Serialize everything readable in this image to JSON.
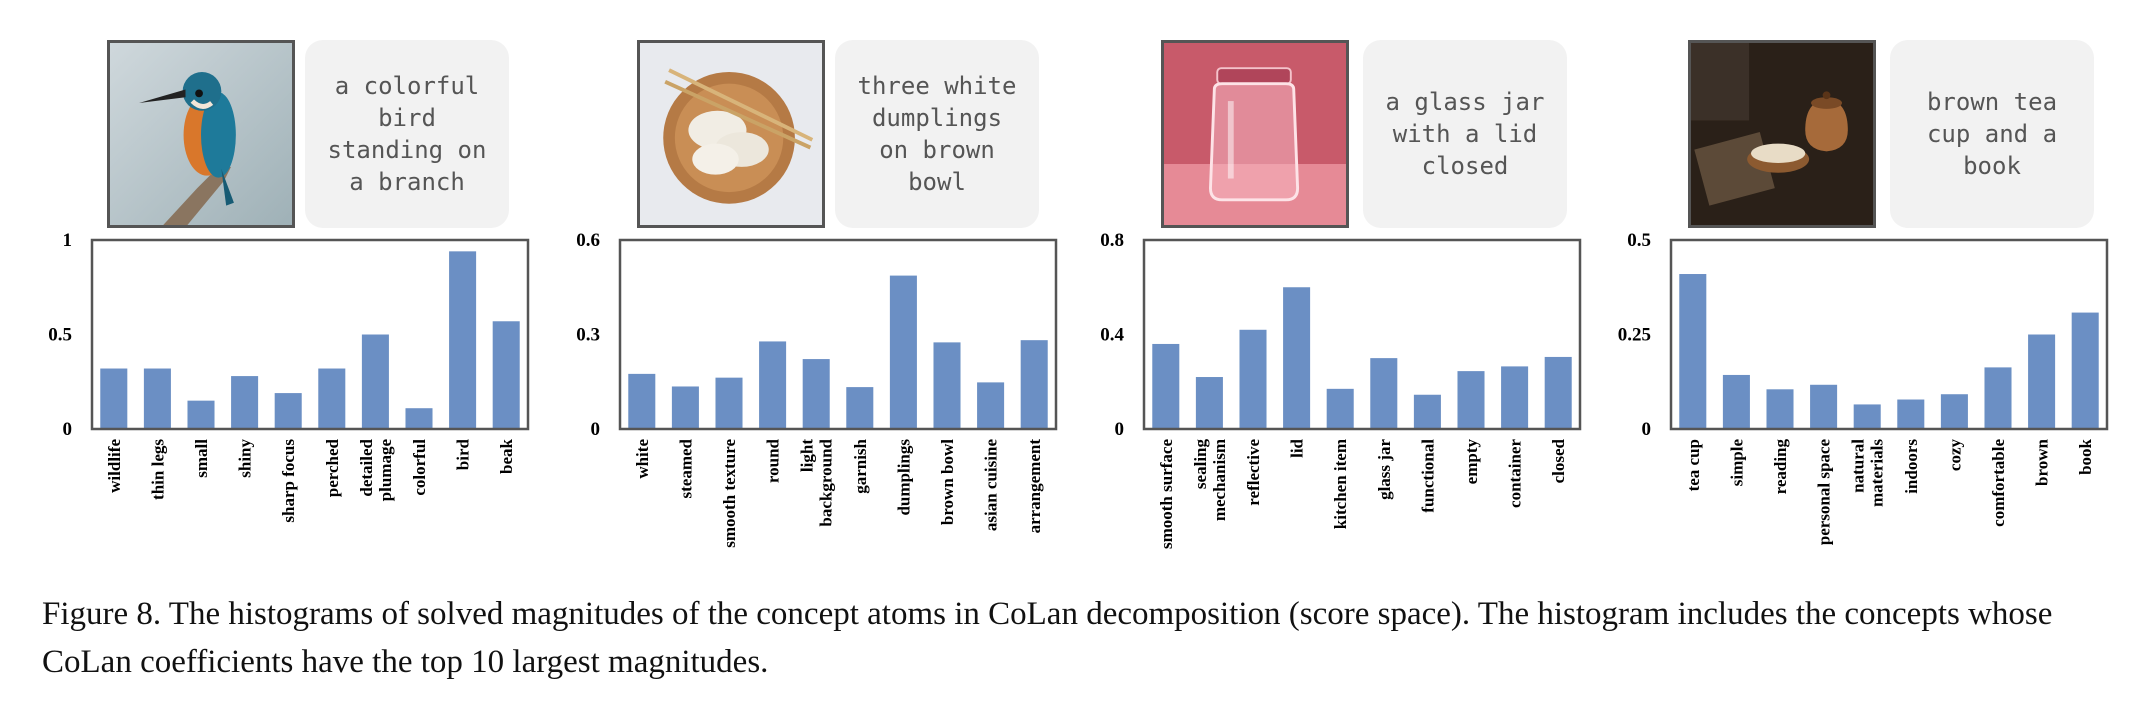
{
  "panels": [
    {
      "caption": "a colorful bird standing on a branch",
      "image": "kingfisher-bird-photo"
    },
    {
      "caption": "three white dumplings on brown bowl",
      "image": "dumplings-bowl-photo"
    },
    {
      "caption": "a glass jar with a lid closed",
      "image": "glass-jar-photo"
    },
    {
      "caption": "brown tea cup and a book",
      "image": "tea-cup-photo"
    }
  ],
  "chart_data": [
    {
      "type": "bar",
      "categories": [
        "wildlife",
        "thin legs",
        "small",
        "shiny",
        "sharp focus",
        "perched",
        "detailed\nplumage",
        "colorful",
        "bird",
        "beak"
      ],
      "values": [
        0.32,
        0.32,
        0.15,
        0.28,
        0.19,
        0.32,
        0.5,
        0.11,
        0.94,
        0.57
      ],
      "yticks": [
        "0",
        "0.5",
        "1"
      ],
      "ylim": [
        0,
        1
      ],
      "bar_color": "#6b8fc4"
    },
    {
      "type": "bar",
      "categories": [
        "white",
        "steamed",
        "smooth texture",
        "round",
        "light\nbackground",
        "garnish",
        "dumplings",
        "brown bowl",
        "asian cuisine",
        "arrangement"
      ],
      "values": [
        0.175,
        0.135,
        0.163,
        0.278,
        0.222,
        0.133,
        0.487,
        0.275,
        0.148,
        0.282
      ],
      "yticks": [
        "0",
        "0.3",
        "0.6"
      ],
      "ylim": [
        0,
        0.6
      ],
      "bar_color": "#6b8fc4"
    },
    {
      "type": "bar",
      "categories": [
        "smooth surface",
        "sealing\nmechanism",
        "reflective",
        "lid",
        "kitchen item",
        "glass jar",
        "functional",
        "empty",
        "container",
        "closed"
      ],
      "values": [
        0.36,
        0.22,
        0.42,
        0.6,
        0.17,
        0.3,
        0.145,
        0.245,
        0.265,
        0.305
      ],
      "yticks": [
        "0",
        "0.4",
        "0.8"
      ],
      "ylim": [
        0,
        0.8
      ],
      "bar_color": "#6b8fc4"
    },
    {
      "type": "bar",
      "categories": [
        "tea cup",
        "simple",
        "reading",
        "personal space",
        "natural\nmaterials",
        "indoors",
        "cozy",
        "comfortable",
        "brown",
        "book"
      ],
      "values": [
        0.41,
        0.143,
        0.105,
        0.117,
        0.065,
        0.078,
        0.092,
        0.163,
        0.25,
        0.308
      ],
      "yticks": [
        "0",
        "0.25",
        "0.5"
      ],
      "ylim": [
        0,
        0.5
      ],
      "bar_color": "#6b8fc4"
    }
  ],
  "figure_caption": "Figure 8. The histograms of solved magnitudes of the concept atoms in CoLan decomposition (score space). The histogram includes the concepts whose CoLan coefficients have the top 10 largest magnitudes."
}
